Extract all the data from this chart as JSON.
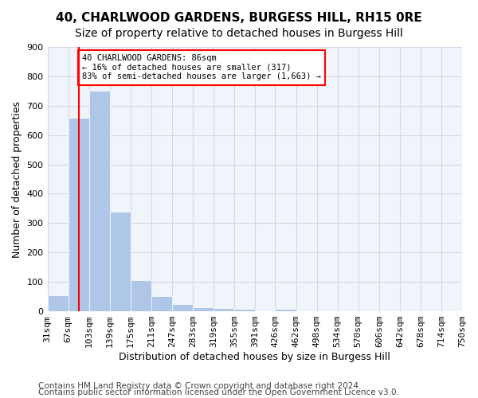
{
  "title1": "40, CHARLWOOD GARDENS, BURGESS HILL, RH15 0RE",
  "title2": "Size of property relative to detached houses in Burgess Hill",
  "xlabel": "Distribution of detached houses by size in Burgess Hill",
  "ylabel": "Number of detached properties",
  "bin_labels": [
    "31sqm",
    "67sqm",
    "103sqm",
    "139sqm",
    "175sqm",
    "211sqm",
    "247sqm",
    "283sqm",
    "319sqm",
    "355sqm",
    "391sqm",
    "426sqm",
    "462sqm",
    "498sqm",
    "534sqm",
    "570sqm",
    "606sqm",
    "642sqm",
    "678sqm",
    "714sqm",
    "750sqm"
  ],
  "bin_edges": [
    31,
    67,
    103,
    139,
    175,
    211,
    247,
    283,
    319,
    355,
    391,
    426,
    462,
    498,
    534,
    570,
    606,
    642,
    678,
    714,
    750
  ],
  "bar_values": [
    55,
    660,
    750,
    338,
    107,
    52,
    25,
    14,
    12,
    8,
    0,
    8,
    0,
    0,
    0,
    0,
    0,
    0,
    0,
    0
  ],
  "bar_color": "#aec6e8",
  "property_line_x": 86,
  "annotation_text": "40 CHARLWOOD GARDENS: 86sqm\n← 16% of detached houses are smaller (317)\n83% of semi-detached houses are larger (1,663) →",
  "annotation_box_color": "white",
  "annotation_box_edge_color": "red",
  "vline_color": "red",
  "ylim": [
    0,
    900
  ],
  "yticks": [
    0,
    100,
    200,
    300,
    400,
    500,
    600,
    700,
    800,
    900
  ],
  "grid_color": "#d0d8e8",
  "background_color": "#f0f4fb",
  "footer1": "Contains HM Land Registry data © Crown copyright and database right 2024.",
  "footer2": "Contains public sector information licensed under the Open Government Licence v3.0.",
  "title1_fontsize": 11,
  "title2_fontsize": 10,
  "xlabel_fontsize": 9,
  "ylabel_fontsize": 9,
  "tick_fontsize": 8,
  "footer_fontsize": 7.5
}
